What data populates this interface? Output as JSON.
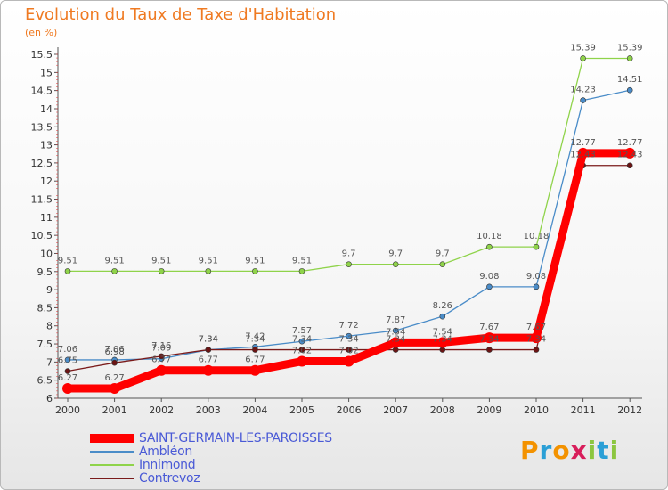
{
  "chart_data": {
    "type": "line",
    "title": "Evolution du Taux de Taxe d'Habitation",
    "subtitle": "(en %)",
    "x": [
      "2000",
      "2001",
      "2002",
      "2003",
      "2004",
      "2005",
      "2006",
      "2007",
      "2008",
      "2009",
      "2010",
      "2011",
      "2012"
    ],
    "yticks": [
      "6",
      "6.5",
      "7",
      "7.5",
      "8",
      "8.5",
      "9",
      "9.5",
      "10",
      "10.5",
      "11",
      "11.5",
      "12",
      "12.5",
      "13",
      "13.5",
      "14",
      "14.5",
      "15",
      "15.5"
    ],
    "ylim": [
      6,
      15.5
    ],
    "grid": false,
    "legend_position": "bottom-left",
    "series": [
      {
        "name": "SAINT-GERMAIN-LES-PAROISSES",
        "color": "#ff0000",
        "values": [
          6.27,
          6.27,
          6.77,
          6.77,
          6.77,
          7.02,
          7.02,
          7.54,
          7.54,
          7.67,
          7.67,
          12.77,
          12.77
        ],
        "labels": [
          "6.27",
          "6.27",
          "6.77",
          "6.77",
          "6.77",
          "7.02",
          "7.02",
          "7.54",
          "7.54",
          "7.67",
          "7.67",
          "12.77",
          "12.77"
        ]
      },
      {
        "name": "Ambléon",
        "color": "#4a8cc8",
        "values": [
          7.06,
          7.06,
          7.09,
          7.34,
          7.42,
          7.57,
          7.72,
          7.87,
          8.26,
          9.08,
          9.08,
          14.23,
          14.51
        ],
        "labels": [
          "7.06",
          "7.06",
          "7.09",
          "7.34",
          "7.42",
          "7.57",
          "7.72",
          "7.87",
          "8.26",
          "9.08",
          "9.08",
          "14.23",
          "14.51"
        ]
      },
      {
        "name": "Innimond",
        "color": "#8fd34a",
        "values": [
          9.51,
          9.51,
          9.51,
          9.51,
          9.51,
          9.51,
          9.7,
          9.7,
          9.7,
          10.18,
          10.18,
          15.39,
          15.39
        ],
        "labels": [
          "9.51",
          "9.51",
          "9.51",
          "9.51",
          "9.51",
          "9.51",
          "9.7",
          "9.7",
          "9.7",
          "10.18",
          "10.18",
          "15.39",
          "15.39"
        ]
      },
      {
        "name": "Contrevoz",
        "color": "#7a1a1a",
        "values": [
          6.75,
          6.98,
          7.16,
          7.34,
          7.34,
          7.34,
          7.34,
          7.34,
          7.34,
          7.34,
          7.34,
          12.43,
          12.43
        ],
        "labels": [
          "6.75",
          "6.98",
          "7.16",
          "7.34",
          "7.34",
          "7.34",
          "7.34",
          "7.34",
          "7.34",
          "7.34",
          "7.34",
          "12.43",
          "12.43"
        ]
      }
    ]
  },
  "logo": {
    "text": "Proxiti",
    "letters": [
      "P",
      "r",
      "o",
      "x",
      "i",
      "t",
      "i"
    ],
    "colors": [
      "#f39200",
      "#2a9fd6",
      "#f39200",
      "#d81e5b",
      "#8cc63f",
      "#2a9fd6",
      "#8cc63f"
    ]
  }
}
